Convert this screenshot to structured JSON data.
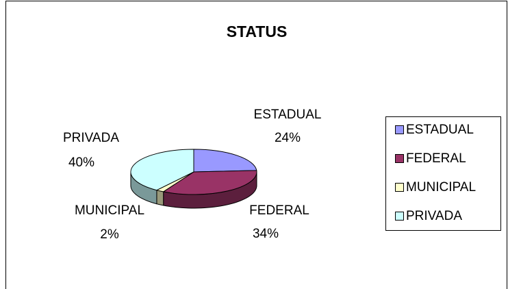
{
  "chart_data": {
    "type": "pie",
    "title": "STATUS",
    "categories": [
      "ESTADUAL",
      "FEDERAL",
      "MUNICIPAL",
      "PRIVADA"
    ],
    "values": [
      24,
      34,
      2,
      40
    ],
    "value_labels": [
      "24%",
      "34%",
      "2%",
      "40%"
    ],
    "colors": [
      "#9999ff",
      "#993366",
      "#ffffcc",
      "#ccffff"
    ],
    "legend": "right"
  }
}
